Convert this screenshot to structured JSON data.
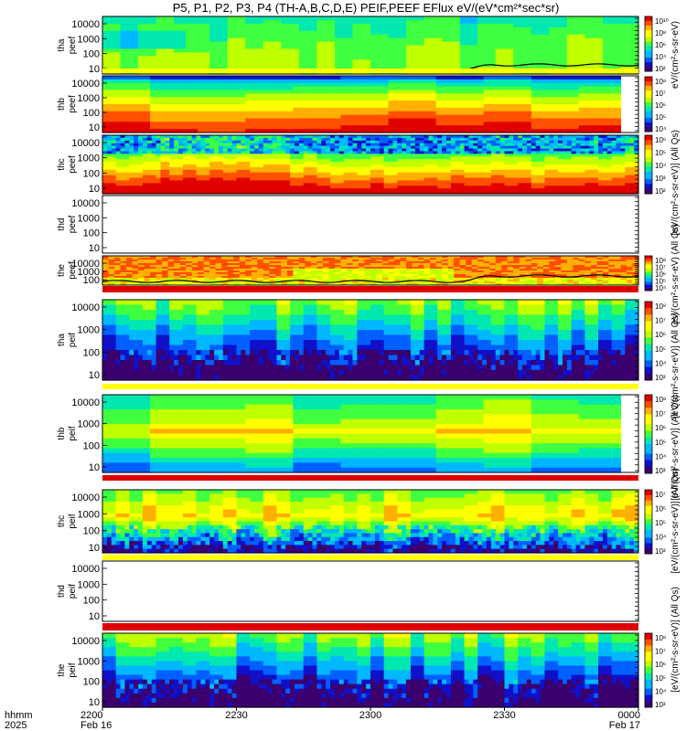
{
  "title": "P5, P1, P2, P3, P4 (TH-A,B,C,D,E) PEIF,PEEF EFlux eV/(eV*cm²*sec*sr)",
  "chart_data": {
    "type": "heatmap",
    "x_row_labels": [
      "hhmm",
      "2025"
    ],
    "x_ticks": [
      {
        "time": "2200",
        "date": "Feb 16"
      },
      {
        "time": "2230",
        "date": ""
      },
      {
        "time": "2300",
        "date": ""
      },
      {
        "time": "2330",
        "date": ""
      },
      {
        "time": "0000",
        "date": "Feb 17"
      }
    ],
    "y_ticks": [
      "10000",
      "1000",
      "100",
      "10"
    ],
    "panels": [
      {
        "label_top": "tha",
        "label_bottom": "peef",
        "y_ticks": [
          "10000",
          "1000",
          "100",
          "10"
        ],
        "empty": false,
        "style": "green",
        "has_line": true,
        "colorbar": true,
        "bottom_band": "yellow"
      },
      {
        "label_top": "thb",
        "label_bottom": "peef",
        "y_ticks": [
          "10000",
          "1000",
          "100",
          "10"
        ],
        "empty": false,
        "style": "red_blocks",
        "colorbar": true,
        "right_gap": true
      },
      {
        "label_top": "thc",
        "label_bottom": "peef",
        "y_ticks": [
          "10000",
          "1000",
          "100",
          "10"
        ],
        "empty": false,
        "style": "red_noisy",
        "colorbar": true
      },
      {
        "label_top": "thd",
        "label_bottom": "peef",
        "y_ticks": [
          "10000",
          "1000",
          "100",
          "10"
        ],
        "empty": true,
        "colorbar": false
      },
      {
        "label_top": "the",
        "label_bottom": "peef",
        "y_ticks": [
          "10000",
          "1000",
          "100"
        ],
        "empty": false,
        "style": "red_high",
        "has_line": true,
        "colorbar": true,
        "bottom_band": "red"
      },
      {
        "label_top": "tha",
        "label_bottom": "peif",
        "y_ticks": [
          "10000",
          "1000",
          "100",
          "10"
        ],
        "empty": false,
        "style": "ion_low",
        "colorbar": true,
        "bottom_band": "yellow"
      },
      {
        "label_top": "thb",
        "label_bottom": "peif",
        "y_ticks": [
          "10000",
          "1000",
          "100",
          "10"
        ],
        "empty": false,
        "style": "ion_blocks",
        "colorbar": true,
        "right_gap": true,
        "bottom_band": "red"
      },
      {
        "label_top": "thc",
        "label_bottom": "peif",
        "y_ticks": [
          "10000",
          "1000",
          "100",
          "10"
        ],
        "empty": false,
        "style": "ion_mid",
        "colorbar": true,
        "bottom_band": "yellow"
      },
      {
        "label_top": "thd",
        "label_bottom": "peif",
        "y_ticks": [
          "10000",
          "1000",
          "100",
          "10"
        ],
        "empty": true,
        "colorbar": false,
        "bottom_band": "red"
      },
      {
        "label_top": "the",
        "label_bottom": "peif",
        "y_ticks": [
          "10000",
          "1000",
          "100",
          "10"
        ],
        "empty": false,
        "style": "ion_low",
        "colorbar": true
      }
    ],
    "colorbars": [
      {
        "ticks": [
          "10¹⁰",
          "10⁸",
          "10⁶",
          "10⁴",
          "10²"
        ]
      },
      {
        "ticks": [
          "10⁸",
          "10⁷",
          "10⁶",
          "10⁵",
          "10⁴"
        ]
      },
      {
        "ticks": [
          "10⁶",
          "10⁵",
          "10⁴",
          "10³",
          "10²"
        ]
      },
      {
        "ticks": [
          "10⁸",
          "10⁷",
          "10⁶",
          "10⁵",
          "10⁴"
        ]
      },
      {
        "ticks": [
          "10⁸",
          "10⁷",
          "10⁶",
          "10⁵",
          "10⁴",
          "10³"
        ]
      },
      {
        "ticks": [
          "10⁸",
          "10⁷",
          "10⁶",
          "10⁵",
          "10⁴",
          "10³"
        ]
      },
      {
        "ticks": [
          "10⁷",
          "10⁶",
          "10⁵",
          "10⁴",
          "10³"
        ]
      },
      {
        "ticks": [
          "10⁸",
          "10⁷",
          "10⁶",
          "10⁵",
          "10⁴",
          "10³"
        ]
      }
    ],
    "colorbar_side_labels": [
      "eV/(cm²-s-sr-eV)",
      "[eV/(cm²-s-sr-eV)] (All Qs)",
      "eV/(cm²-s-sr-eV) (All Qs)",
      "[eV/(cm²-s-sr-eV)] (All Qs)",
      "[eV/(cm²-s-sr-eV)] (All Qs)",
      "[eV/(cm²-s-sr-eV)] (All Qs)",
      "[eV/(cm²-s-sr-eV)] (All Qs)"
    ],
    "colors": {
      "scale": [
        "#3a006e",
        "#1010c8",
        "#0060ff",
        "#00b8ff",
        "#00e8b0",
        "#40ff40",
        "#c0ff00",
        "#ffff00",
        "#ffb000",
        "#ff5000",
        "#e00000"
      ],
      "band_yellow": "#ffff00",
      "band_red": "#dd0000",
      "line": "#000000"
    }
  }
}
